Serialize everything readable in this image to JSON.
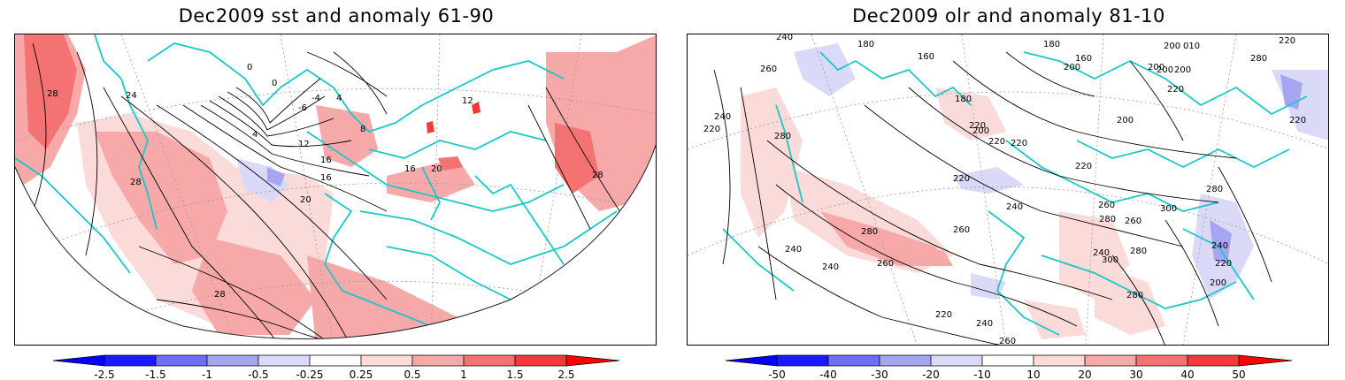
{
  "colors": {
    "coast": "#1cc7c7",
    "grid": "#9a9a9a",
    "contour": "#000000",
    "neg3": "#1a1aff",
    "neg2": "#6e6ef5",
    "neg1": "#a5a5f2",
    "neg0": "#dadaf8",
    "pos0": "#fbdada",
    "pos1": "#f7a8a8",
    "pos2": "#f57272",
    "pos3": "#f23a3a",
    "arrow_neg": "#0000ff",
    "arrow_pos": "#ff0000"
  },
  "left": {
    "title": "Dec2009 sst and anomaly 61-90",
    "colorbar_labels": [
      "-2.5",
      "-1.5",
      "-1",
      "-0.5",
      "-0.25",
      "0.25",
      "0.5",
      "1",
      "1.5",
      "2.5"
    ],
    "contour_labels": [
      "28",
      "24",
      "0",
      "0",
      "4",
      "-4",
      "-6",
      "4",
      "12",
      "16",
      "16",
      "20",
      "28",
      "28",
      "12",
      "8",
      "16",
      "20",
      "28"
    ]
  },
  "right": {
    "title": "Dec2009 olr and anomaly 81-10",
    "colorbar_labels": [
      "-50",
      "-40",
      "-30",
      "-20",
      "-10",
      "10",
      "20",
      "30",
      "40",
      "50"
    ],
    "contour_labels": [
      "240",
      "180",
      "160",
      "180",
      "200",
      "200",
      "160",
      "200",
      "010",
      "200",
      "200",
      "220",
      "220",
      "280",
      "260",
      "180",
      "200",
      "240",
      "220",
      "280",
      "220",
      "220",
      "220",
      "200",
      "220",
      "220",
      "220",
      "260",
      "240",
      "260",
      "280",
      "300",
      "260",
      "280",
      "280",
      "280",
      "240",
      "240",
      "240",
      "260",
      "300",
      "240",
      "220",
      "200",
      "220",
      "240",
      "280",
      "260"
    ]
  }
}
